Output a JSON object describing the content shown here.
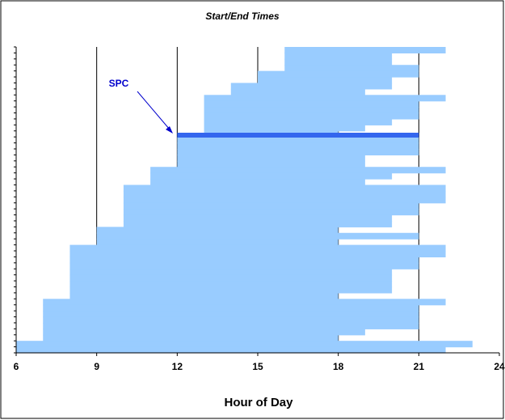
{
  "chart_data": {
    "type": "bar",
    "orientation": "horizontal-range",
    "title": "Start/End Times",
    "xlabel": "Hour of Day",
    "ylabel": "",
    "xlim": [
      6,
      24
    ],
    "xticks": [
      6,
      9,
      12,
      15,
      18,
      21,
      24
    ],
    "vertical_gridlines_at": [
      9,
      12,
      15,
      18,
      21
    ],
    "legend": "none",
    "colors": {
      "bar": "#99ccff",
      "highlight": "#3366ee",
      "annotation": "#0000cc",
      "grid": "#000000"
    },
    "rows_top_to_bottom": [
      {
        "start": 16,
        "end": 22
      },
      {
        "start": 16,
        "end": 20
      },
      {
        "start": 16,
        "end": 20
      },
      {
        "start": 16,
        "end": 21
      },
      {
        "start": 15,
        "end": 21
      },
      {
        "start": 15,
        "end": 20
      },
      {
        "start": 14,
        "end": 20
      },
      {
        "start": 14,
        "end": 19
      },
      {
        "start": 13,
        "end": 22
      },
      {
        "start": 13,
        "end": 21
      },
      {
        "start": 13,
        "end": 21
      },
      {
        "start": 13,
        "end": 21
      },
      {
        "start": 13,
        "end": 20
      },
      {
        "start": 13,
        "end": 19
      },
      {
        "start": 13,
        "end": 18
      },
      {
        "start": 12,
        "end": 21
      },
      {
        "start": 12,
        "end": 21
      },
      {
        "start": 12,
        "end": 21
      },
      {
        "start": 12,
        "end": 19
      },
      {
        "start": 12,
        "end": 19
      },
      {
        "start": 11,
        "end": 22
      },
      {
        "start": 11,
        "end": 20
      },
      {
        "start": 11,
        "end": 19
      },
      {
        "start": 10,
        "end": 22
      },
      {
        "start": 10,
        "end": 22
      },
      {
        "start": 10,
        "end": 22
      },
      {
        "start": 10,
        "end": 21
      },
      {
        "start": 10,
        "end": 21
      },
      {
        "start": 10,
        "end": 20
      },
      {
        "start": 10,
        "end": 20
      },
      {
        "start": 9,
        "end": 18
      },
      {
        "start": 9,
        "end": 21
      },
      {
        "start": 9,
        "end": 18
      },
      {
        "start": 8,
        "end": 22
      },
      {
        "start": 8,
        "end": 22
      },
      {
        "start": 8,
        "end": 21
      },
      {
        "start": 8,
        "end": 21
      },
      {
        "start": 8,
        "end": 20
      },
      {
        "start": 8,
        "end": 20
      },
      {
        "start": 8,
        "end": 20
      },
      {
        "start": 8,
        "end": 20
      },
      {
        "start": 8,
        "end": 18
      },
      {
        "start": 7,
        "end": 22
      },
      {
        "start": 7,
        "end": 21
      },
      {
        "start": 7,
        "end": 21
      },
      {
        "start": 7,
        "end": 21
      },
      {
        "start": 7,
        "end": 21
      },
      {
        "start": 7,
        "end": 19
      },
      {
        "start": 7,
        "end": 18
      },
      {
        "start": 6,
        "end": 23
      },
      {
        "start": 6,
        "end": 22
      }
    ],
    "highlight": {
      "start": 12,
      "end": 21,
      "label": "SPC"
    }
  }
}
